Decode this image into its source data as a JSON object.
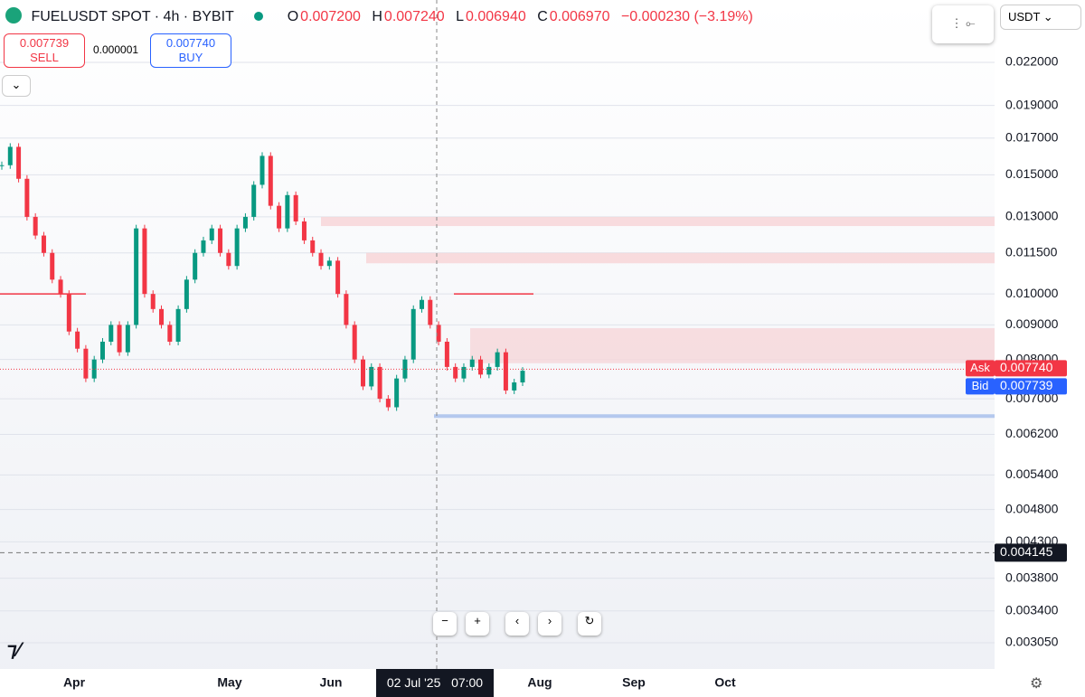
{
  "header": {
    "symbol": "FUELUSDT SPOT · 4h · BYBIT",
    "o_label": "O",
    "open": "0.007200",
    "h_label": "H",
    "high": "0.007240",
    "l_label": "L",
    "low": "0.006940",
    "c_label": "C",
    "close": "0.006970",
    "change": "−0.000230 (−3.19%)",
    "currency": "USDT"
  },
  "trade": {
    "sell_price": "0.007739",
    "sell_label": "SELL",
    "spread": "0.000001",
    "buy_price": "0.007740",
    "buy_label": "BUY"
  },
  "crosshair": {
    "date": "02 Jul '25",
    "time": "07:00"
  },
  "chart_data": {
    "type": "candlestick",
    "log_scale": true,
    "x_labels": [
      "Apr",
      "May",
      "Jun",
      "Aug",
      "Sep",
      "Oct"
    ],
    "series": [
      {
        "name": "FUELUSDT",
        "up_color": "#089981",
        "down_color": "#f23645",
        "values": [
          0.0155,
          0.0165,
          0.0148,
          0.013,
          0.0122,
          0.0115,
          0.0105,
          0.01,
          0.0088,
          0.0083,
          0.0075,
          0.008,
          0.0085,
          0.009,
          0.0082,
          0.009,
          0.0125,
          0.01,
          0.0095,
          0.009,
          0.0085,
          0.0095,
          0.0105,
          0.0115,
          0.012,
          0.0125,
          0.0115,
          0.011,
          0.0125,
          0.013,
          0.0145,
          0.016,
          0.0135,
          0.0125,
          0.014,
          0.0128,
          0.012,
          0.0115,
          0.011,
          0.0112,
          0.01,
          0.009,
          0.008,
          0.0073,
          0.0078,
          0.007,
          0.0068,
          0.0075,
          0.008,
          0.0095,
          0.0098,
          0.009,
          0.0085,
          0.0078,
          0.0075,
          0.0078,
          0.008,
          0.0076,
          0.0078,
          0.0082,
          0.0072,
          0.0074,
          0.0077
        ]
      }
    ],
    "ylim": [
      0.00279,
      0.0272
    ],
    "yticks": [
      {
        "value": 0.022,
        "label": "0.022000"
      },
      {
        "value": 0.019,
        "label": "0.019000"
      },
      {
        "value": 0.017,
        "label": "0.017000"
      },
      {
        "value": 0.015,
        "label": "0.015000"
      },
      {
        "value": 0.013,
        "label": "0.013000"
      },
      {
        "value": 0.0115,
        "label": "0.011500"
      },
      {
        "value": 0.01,
        "label": "0.010000"
      },
      {
        "value": 0.009,
        "label": "0.009000"
      },
      {
        "value": 0.008,
        "label": "0.008000"
      },
      {
        "value": 0.007,
        "label": "0.007000"
      },
      {
        "value": 0.0062,
        "label": "0.006200"
      },
      {
        "value": 0.0054,
        "label": "0.005400"
      },
      {
        "value": 0.0048,
        "label": "0.004800"
      },
      {
        "value": 0.0043,
        "label": "0.004300"
      },
      {
        "value": 0.0038,
        "label": "0.003800"
      },
      {
        "value": 0.0034,
        "label": "0.003400"
      },
      {
        "value": 0.00305,
        "label": "0.003050"
      }
    ],
    "grid": true,
    "zones": [
      {
        "low": 0.0126,
        "high": 0.013,
        "color": "#f8d3d6"
      },
      {
        "low": 0.0111,
        "high": 0.0115,
        "color": "#f8d3d6"
      },
      {
        "low": 0.0079,
        "high": 0.0089,
        "color": "#f6d6da"
      }
    ],
    "levels": [
      {
        "value": 0.01,
        "color": "#f23645"
      },
      {
        "value": 0.01,
        "color": "#f23645"
      },
      {
        "value": 0.0066,
        "color": "#b4c8ee"
      }
    ],
    "ask": {
      "label": "Ask",
      "value": 0.00774,
      "value_label": "0.007740",
      "color": "#f23645"
    },
    "bid": {
      "label": "Bid",
      "value": 0.007739,
      "value_label": "0.007739",
      "color": "#2962ff"
    },
    "alert_line": {
      "value": 0.004145,
      "label": "0.004145"
    }
  }
}
